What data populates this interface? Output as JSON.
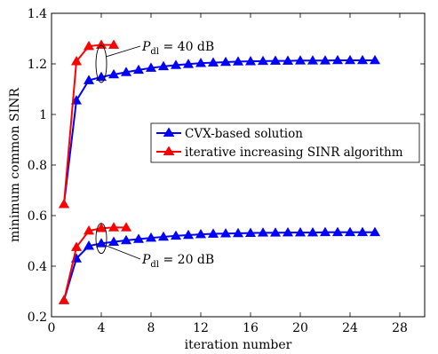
{
  "chart_data": {
    "type": "line",
    "title": "",
    "xlabel": "iteration number",
    "ylabel": "minimum common SINR",
    "xlim": [
      0,
      30
    ],
    "ylim": [
      0.2,
      1.4
    ],
    "xticks": [
      0,
      4,
      8,
      12,
      16,
      20,
      24,
      28
    ],
    "yticks": [
      0.2,
      0.4,
      0.6,
      0.8,
      1,
      1.2,
      1.4
    ],
    "xtick_labels": [
      "0",
      "4",
      "8",
      "12",
      "16",
      "20",
      "24",
      "28"
    ],
    "ytick_labels": [
      "0.2",
      "0.4",
      "0.6",
      "0.8",
      "1",
      "1.2",
      "1.4"
    ],
    "grid": false,
    "legend_position": "center-right",
    "legend": [
      {
        "label": "CVX-based solution",
        "color": "#0000ff",
        "marker": "triangle"
      },
      {
        "label": "iterative increasing SINR algorithm",
        "color": "#ff0000",
        "marker": "triangle"
      }
    ],
    "series": [
      {
        "group": "P_dl = 40 dB",
        "method": "CVX-based solution",
        "color": "#0000ff",
        "x": [
          1,
          2,
          3,
          4,
          5,
          6,
          7,
          8,
          9,
          10,
          11,
          12,
          13,
          14,
          15,
          16,
          17,
          18,
          19,
          20,
          21,
          22,
          23,
          24,
          25,
          26
        ],
        "y": [
          0.645,
          1.055,
          1.135,
          1.148,
          1.158,
          1.167,
          1.176,
          1.184,
          1.19,
          1.195,
          1.199,
          1.203,
          1.205,
          1.207,
          1.209,
          1.21,
          1.211,
          1.212,
          1.212,
          1.213,
          1.213,
          1.213,
          1.214,
          1.214,
          1.214,
          1.214
        ]
      },
      {
        "group": "P_dl = 40 dB",
        "method": "iterative increasing SINR algorithm",
        "color": "#ff0000",
        "x": [
          1,
          2,
          3,
          4,
          5
        ],
        "y": [
          0.645,
          1.21,
          1.27,
          1.275,
          1.275
        ]
      },
      {
        "group": "P_dl = 20 dB",
        "method": "CVX-based solution",
        "color": "#0000ff",
        "x": [
          1,
          2,
          3,
          4,
          5,
          6,
          7,
          8,
          9,
          10,
          11,
          12,
          13,
          14,
          15,
          16,
          17,
          18,
          19,
          20,
          21,
          22,
          23,
          24,
          25,
          26
        ],
        "y": [
          0.265,
          0.43,
          0.48,
          0.49,
          0.496,
          0.502,
          0.507,
          0.512,
          0.516,
          0.52,
          0.523,
          0.526,
          0.528,
          0.529,
          0.53,
          0.531,
          0.532,
          0.532,
          0.533,
          0.533,
          0.533,
          0.534,
          0.534,
          0.534,
          0.534,
          0.534
        ]
      },
      {
        "group": "P_dl = 20 dB",
        "method": "iterative increasing SINR algorithm",
        "color": "#ff0000",
        "x": [
          1,
          2,
          3,
          4,
          5,
          6
        ],
        "y": [
          0.265,
          0.475,
          0.54,
          0.55,
          0.553,
          0.553
        ]
      }
    ],
    "annotations": [
      {
        "text_symbol": "P",
        "text_subscript": "dl",
        "text_value": " = 40 dB",
        "x": 4,
        "y": 1.2
      },
      {
        "text_symbol": "P",
        "text_subscript": "dl",
        "text_value": " = 20 dB",
        "x": 4,
        "y": 0.51
      }
    ]
  }
}
